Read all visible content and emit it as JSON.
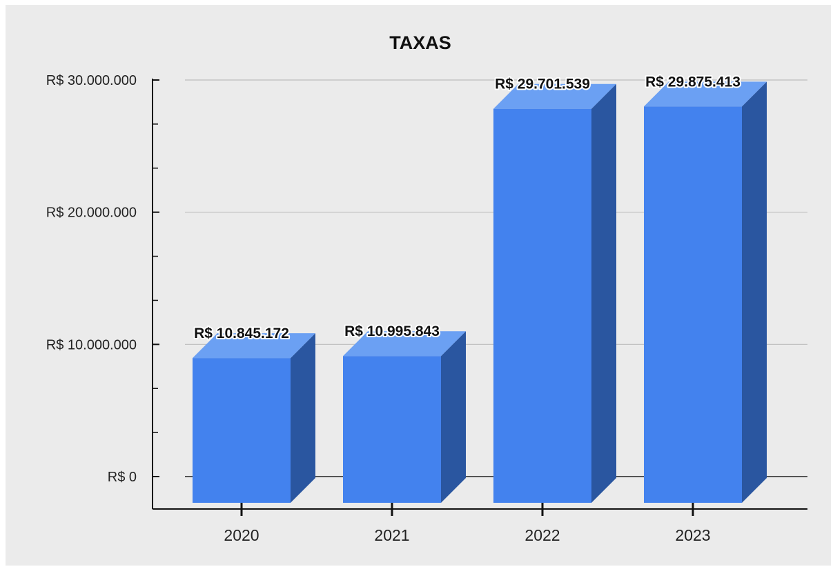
{
  "chart_data": {
    "type": "bar",
    "title": "TAXAS",
    "categories": [
      "2020",
      "2021",
      "2022",
      "2023"
    ],
    "values": [
      10845172,
      10995843,
      29701539,
      29875413
    ],
    "data_labels": [
      "R$ 10.845.172",
      "R$ 10.995.843",
      "R$ 29.701.539",
      "R$ 29.875.413"
    ],
    "ylim": [
      0,
      30000000
    ],
    "y_ticks": [
      0,
      10000000,
      20000000,
      30000000
    ],
    "y_tick_labels": [
      "R$ 0",
      "R$ 10.000.000",
      "R$ 20.000.000",
      "R$ 30.000.000"
    ],
    "xlabel": "",
    "ylabel": "",
    "grid": true,
    "three_d": true,
    "colors": {
      "bar_front": "#4382ee",
      "bar_top": "#6ba0f3",
      "bar_side": "#2a56a0",
      "background": "#ebebeb",
      "grid": "#bdbdbd"
    }
  }
}
